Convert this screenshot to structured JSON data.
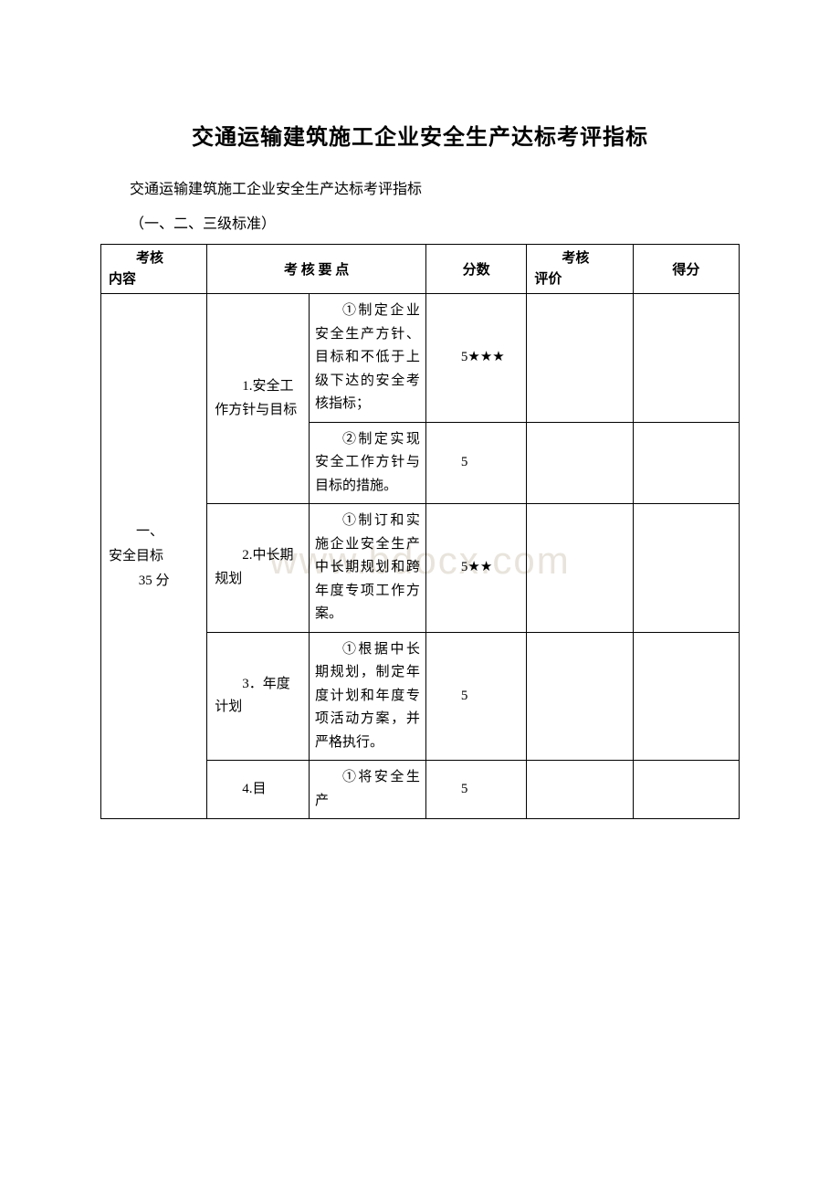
{
  "title": "交通运输建筑施工企业安全生产达标考评指标",
  "subtitle": "交通运输建筑施工企业安全生产达标考评指标",
  "note": "（一、二、三级标准）",
  "watermark": "www.bdocx.com",
  "headers": {
    "content": {
      "line1": "考核",
      "line2": "内容"
    },
    "points": "考 核 要 点",
    "score": "分数",
    "eval": {
      "line1": "考核",
      "line2": "评价"
    },
    "final": "得分"
  },
  "section": {
    "label1": "一、",
    "label2": "安全目标",
    "label3": "35 分"
  },
  "rows": [
    {
      "point": "1.安全工作方针与目标",
      "details": [
        {
          "text": "①制定企业安全生产方针、目标和不低于上级下达的安全考核指标；",
          "score": "5★★★"
        },
        {
          "text": "②制定实现安全工作方针与目标的措施。",
          "score": "5"
        }
      ]
    },
    {
      "point": "2.中长期规划",
      "details": [
        {
          "text": "①制订和实施企业安全生产中长期规划和跨年度专项工作方案。",
          "score": "5★★"
        }
      ]
    },
    {
      "point": "3．年度计划",
      "details": [
        {
          "text": "①根据中长期规划，制定年度计划和年度专项活动方案，并严格执行。",
          "score": "5"
        }
      ]
    },
    {
      "point": "4.目",
      "details": [
        {
          "text": "①将安全生产",
          "score": "5"
        }
      ]
    }
  ],
  "colors": {
    "background": "#ffffff",
    "border": "#000000",
    "text": "#000000",
    "watermark": "#e8e4dc"
  }
}
